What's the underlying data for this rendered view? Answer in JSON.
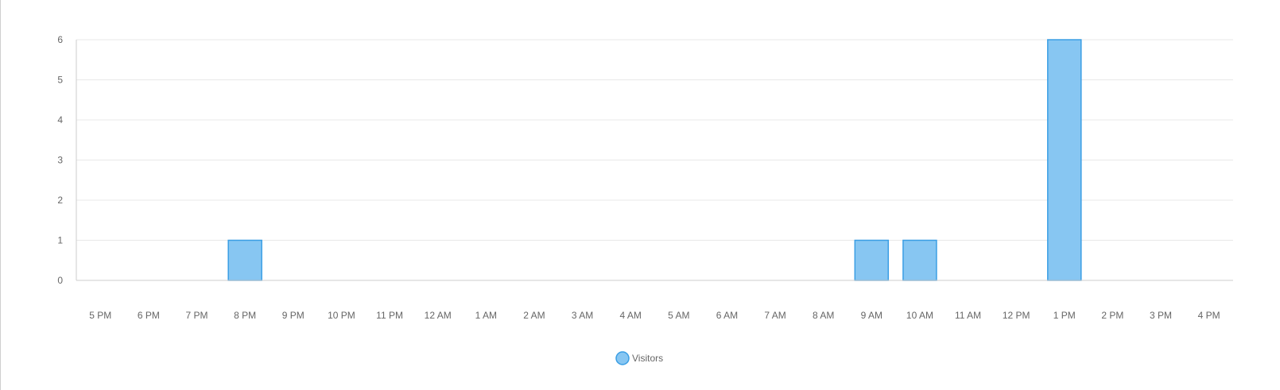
{
  "chart_data": {
    "type": "bar",
    "categories": [
      "5 PM",
      "6 PM",
      "7 PM",
      "8 PM",
      "9 PM",
      "10 PM",
      "11 PM",
      "12 AM",
      "1 AM",
      "2 AM",
      "3 AM",
      "4 AM",
      "5 AM",
      "6 AM",
      "7 AM",
      "8 AM",
      "9 AM",
      "10 AM",
      "11 AM",
      "12 PM",
      "1 PM",
      "2 PM",
      "3 PM",
      "4 PM"
    ],
    "series": [
      {
        "name": "Visitors",
        "values": [
          0,
          0,
          0,
          1,
          0,
          0,
          0,
          0,
          0,
          0,
          0,
          0,
          0,
          0,
          0,
          0,
          1,
          1,
          0,
          0,
          6,
          0,
          0,
          0
        ]
      }
    ],
    "ylim": [
      0,
      6
    ],
    "yticks": [
      "0",
      "1",
      "2",
      "3",
      "4",
      "5",
      "6"
    ],
    "grid": true,
    "legend_position": "bottom-center",
    "colors": {
      "bar_fill": "#87c6f2",
      "bar_stroke": "#3a9ee4",
      "grid": "#e8e8e8",
      "axis": "#cccccc",
      "text": "#666666"
    }
  }
}
